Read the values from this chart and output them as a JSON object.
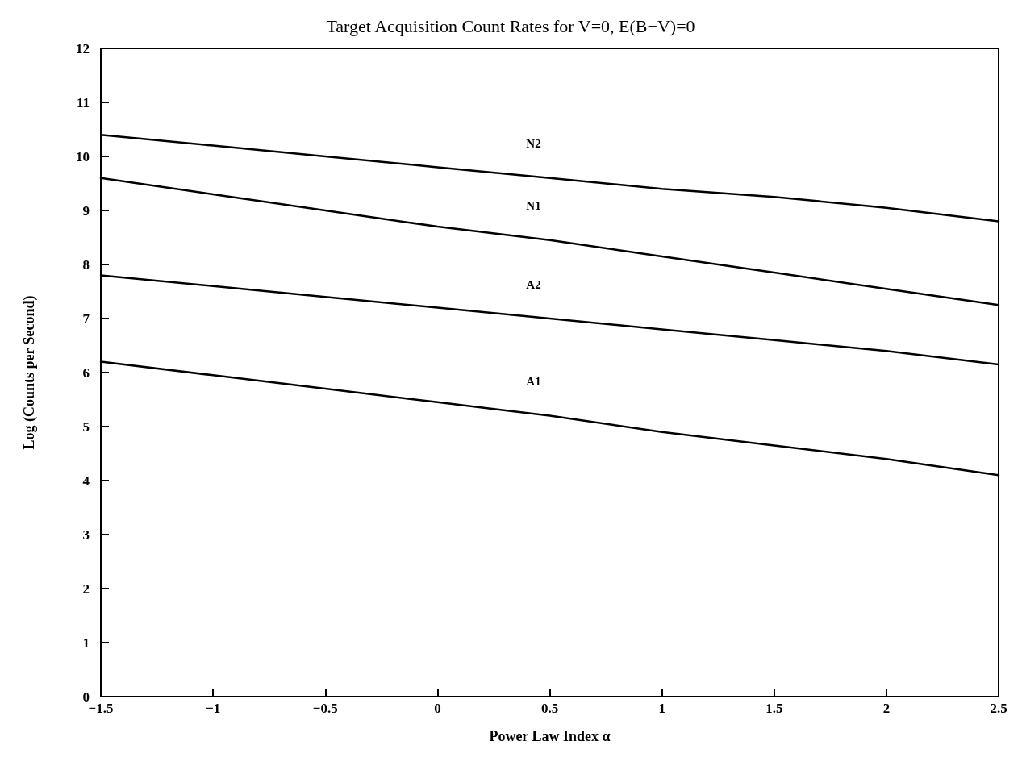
{
  "chart_data": {
    "type": "line",
    "title": "Target Acquisition Count Rates for V=0, E(B−V)=0",
    "xlabel": "Power Law Index α",
    "ylabel": "Log (Counts per Second)",
    "x": [
      -1.5,
      -1,
      -0.5,
      0,
      0.5,
      1,
      1.5,
      2,
      2.5
    ],
    "series": [
      {
        "name": "N2",
        "color": "#000000",
        "values": [
          10.4,
          10.2,
          10.0,
          9.8,
          9.6,
          9.4,
          9.25,
          9.05,
          8.8
        ]
      },
      {
        "name": "N1",
        "color": "#000000",
        "values": [
          9.6,
          9.3,
          9.0,
          8.7,
          8.45,
          8.15,
          7.85,
          7.55,
          7.25
        ]
      },
      {
        "name": "A2",
        "color": "#000000",
        "values": [
          7.8,
          7.6,
          7.4,
          7.2,
          7.0,
          6.8,
          6.6,
          6.4,
          6.15
        ]
      },
      {
        "name": "A1",
        "color": "#000000",
        "values": [
          6.2,
          5.95,
          5.7,
          5.45,
          5.2,
          4.9,
          4.65,
          4.4,
          4.1
        ]
      }
    ],
    "xlim": [
      -1.5,
      2.5
    ],
    "xticks": [
      -1.5,
      -1,
      -0.5,
      0,
      0.5,
      1,
      1.5,
      2,
      2.5
    ],
    "ylim": [
      0,
      12
    ],
    "yticks": [
      0,
      1,
      2,
      3,
      4,
      5,
      6,
      7,
      8,
      9,
      10,
      11,
      12
    ],
    "grid": false,
    "legend": false,
    "marker": "none",
    "line_style": "solid"
  }
}
